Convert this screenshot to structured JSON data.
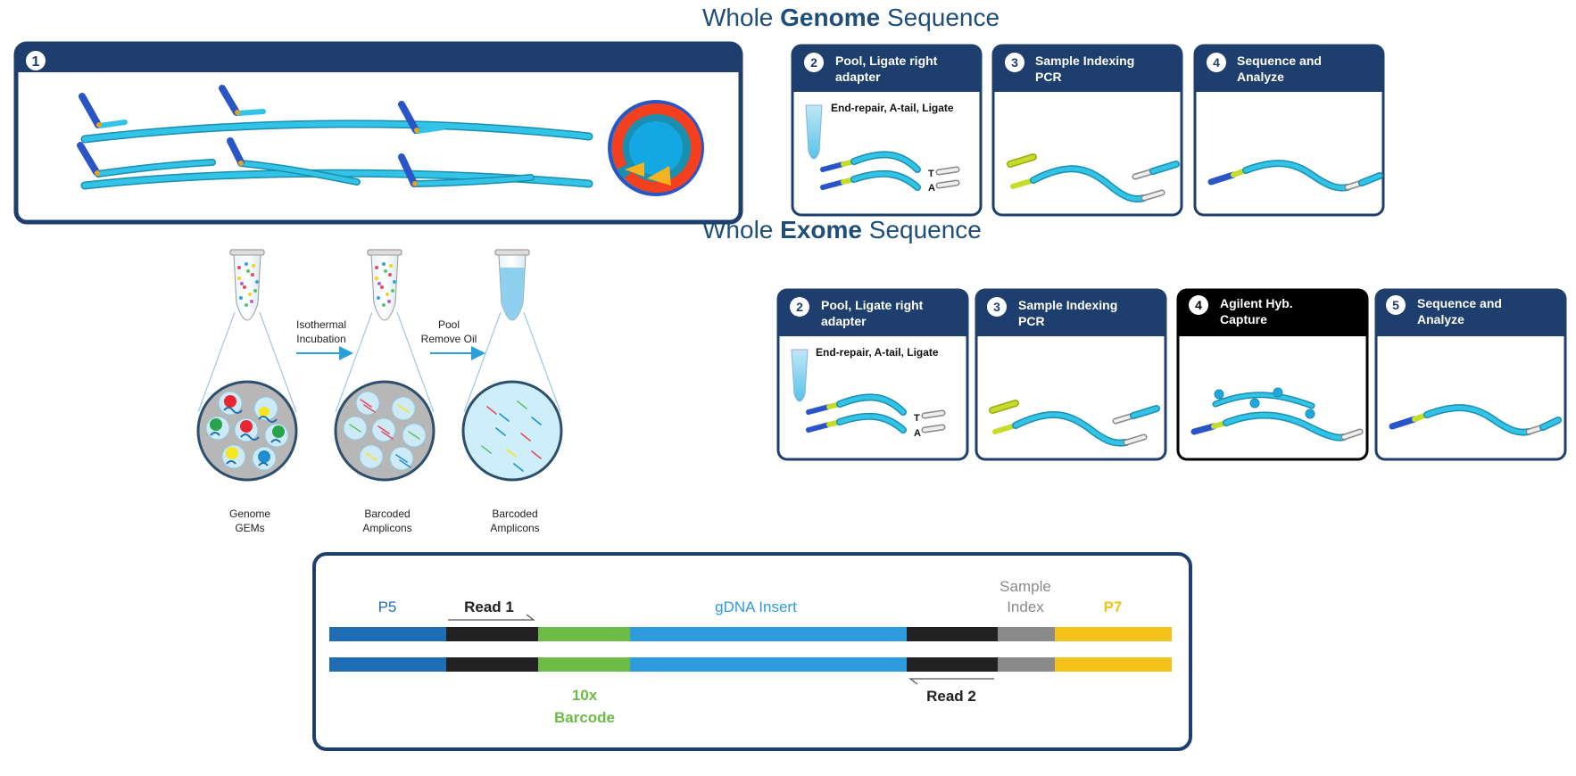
{
  "colors": {
    "navy": "#1e3f6e",
    "cyan": "#2bb9dc",
    "adapter_blue": "#2a55c6",
    "barcode_yellow": "#c6dc2a",
    "index_gray": "#cfcfcf",
    "p5_blue": "#1f6db5",
    "read_black": "#222222",
    "barcode_green": "#6cbb45",
    "insert_blue": "#2d9bdc",
    "sample_index_gray": "#8a8a8a",
    "p7_yellow": "#f2c21a"
  },
  "step1": {
    "number": "1"
  },
  "gems": {
    "step_a": {
      "line1": "Isothermal",
      "line2": "Incubation"
    },
    "step_b": {
      "line1": "Pool",
      "line2": "Remove Oil"
    },
    "labels": [
      {
        "line1": "Genome",
        "line2": "GEMs"
      },
      {
        "line1": "Barcoded",
        "line2": "Amplicons"
      },
      {
        "line1": "Barcoded",
        "line2": "Amplicons"
      }
    ]
  },
  "wgs": {
    "title_pre": "Whole ",
    "title_bold": "Genome",
    "title_post": " Sequence",
    "steps": [
      {
        "num": "2",
        "line1": "Pool, Ligate right",
        "line2": "adapter",
        "caption": "End-repair, A-tail, Ligate",
        "t": "T",
        "a": "A"
      },
      {
        "num": "3",
        "line1": "Sample Indexing",
        "line2": "PCR"
      },
      {
        "num": "4",
        "line1": "Sequence and",
        "line2": "Analyze"
      }
    ]
  },
  "wes": {
    "title_pre": "Whole ",
    "title_bold": "Exome",
    "title_post": " Sequence",
    "steps": [
      {
        "num": "2",
        "line1": "Pool, Ligate right",
        "line2": "adapter",
        "caption": "End-repair, A-tail, Ligate",
        "t": "T",
        "a": "A"
      },
      {
        "num": "3",
        "line1": "Sample Indexing",
        "line2": "PCR"
      },
      {
        "num": "4",
        "line1": "Agilent Hyb.",
        "line2": "Capture"
      },
      {
        "num": "5",
        "line1": "Sequence and",
        "line2": "Analyze"
      }
    ]
  },
  "construct": {
    "p5": "P5",
    "read1": "Read 1",
    "insert": "gDNA Insert",
    "sample_index_line1": "Sample",
    "sample_index_line2": "Index",
    "p7": "P7",
    "barcode_line1": "10x",
    "barcode_line2": "Barcode",
    "read2": "Read 2"
  }
}
